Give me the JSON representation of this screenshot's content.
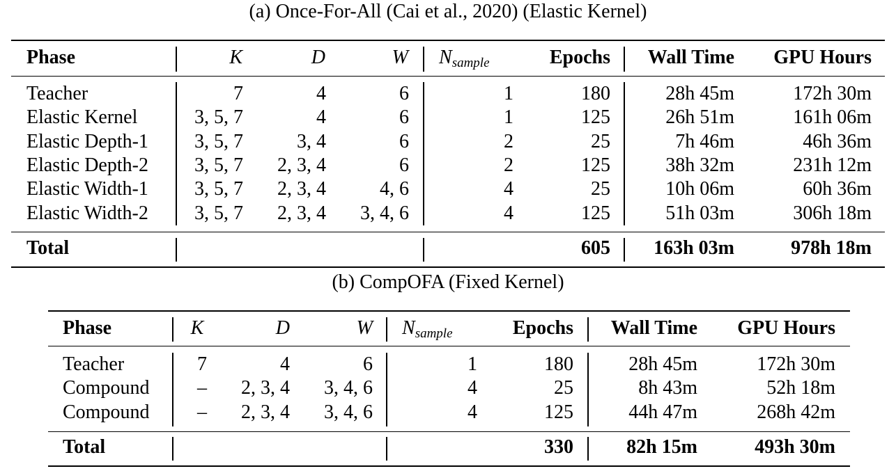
{
  "table_a": {
    "caption": "(a) Once-For-All (Cai et al., 2020) (Elastic Kernel)",
    "headers": {
      "phase": "Phase",
      "k": "K",
      "d": "D",
      "w": "W",
      "n_sample_base": "N",
      "n_sample_sub": "sample",
      "epochs": "Epochs",
      "wall_time": "Wall Time",
      "gpu_hours": "GPU Hours"
    },
    "rows": [
      {
        "phase": "Teacher",
        "k": "7",
        "d": "4",
        "w": "6",
        "n": "1",
        "epochs": "180",
        "wall": "28h 45m",
        "gpu": "172h 30m"
      },
      {
        "phase": "Elastic Kernel",
        "k": "3, 5, 7",
        "d": "4",
        "w": "6",
        "n": "1",
        "epochs": "125",
        "wall": "26h 51m",
        "gpu": "161h 06m"
      },
      {
        "phase": "Elastic Depth-1",
        "k": "3, 5, 7",
        "d": "3, 4",
        "w": "6",
        "n": "2",
        "epochs": "25",
        "wall": "7h 46m",
        "gpu": "46h 36m"
      },
      {
        "phase": "Elastic Depth-2",
        "k": "3, 5, 7",
        "d": "2, 3, 4",
        "w": "6",
        "n": "2",
        "epochs": "125",
        "wall": "38h 32m",
        "gpu": "231h 12m"
      },
      {
        "phase": "Elastic Width-1",
        "k": "3, 5, 7",
        "d": "2, 3, 4",
        "w": "4, 6",
        "n": "4",
        "epochs": "25",
        "wall": "10h 06m",
        "gpu": "60h 36m"
      },
      {
        "phase": "Elastic Width-2",
        "k": "3, 5, 7",
        "d": "2, 3, 4",
        "w": "3, 4, 6",
        "n": "4",
        "epochs": "125",
        "wall": "51h 03m",
        "gpu": "306h 18m"
      }
    ],
    "total": {
      "label": "Total",
      "epochs": "605",
      "wall": "163h 03m",
      "gpu": "978h 18m"
    }
  },
  "table_b": {
    "caption": "(b) CompOFA (Fixed Kernel)",
    "headers": {
      "phase": "Phase",
      "k": "K",
      "d": "D",
      "w": "W",
      "n_sample_base": "N",
      "n_sample_sub": "sample",
      "epochs": "Epochs",
      "wall_time": "Wall Time",
      "gpu_hours": "GPU Hours"
    },
    "rows": [
      {
        "phase": "Teacher",
        "k": "7",
        "d": "4",
        "w": "6",
        "n": "1",
        "epochs": "180",
        "wall": "28h 45m",
        "gpu": "172h 30m"
      },
      {
        "phase": "Compound",
        "k": "–",
        "d": "2, 3, 4",
        "w": "3, 4, 6",
        "n": "4",
        "epochs": "25",
        "wall": "8h 43m",
        "gpu": "52h 18m"
      },
      {
        "phase": "Compound",
        "k": "–",
        "d": "2, 3, 4",
        "w": "3, 4, 6",
        "n": "4",
        "epochs": "125",
        "wall": "44h 47m",
        "gpu": "268h 42m"
      }
    ],
    "total": {
      "label": "Total",
      "epochs": "330",
      "wall": "82h 15m",
      "gpu": "493h 30m"
    }
  }
}
